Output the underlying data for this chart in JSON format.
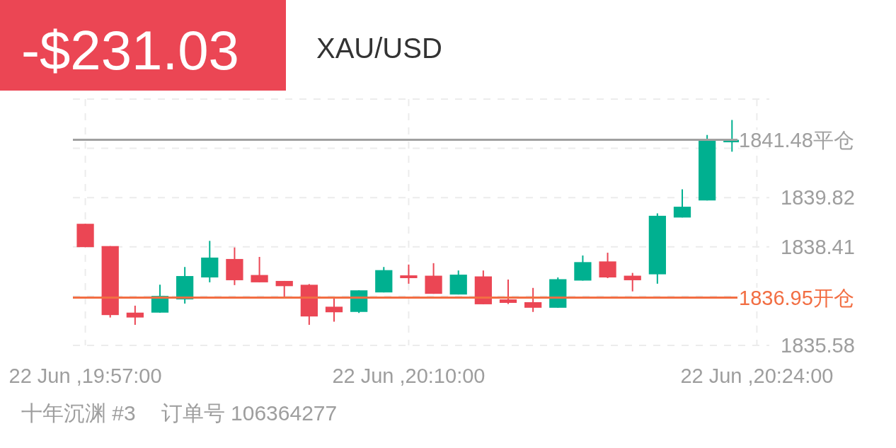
{
  "chart_data": {
    "type": "candlestick",
    "title": "-$231.03",
    "subtitle": "XAU/USD",
    "annotations": [
      "十年沉渊 #3",
      "订单号 106364277"
    ],
    "categories": [
      "22 Jun ,19:57:00",
      null,
      null,
      null,
      null,
      null,
      null,
      null,
      null,
      null,
      null,
      null,
      null,
      "22 Jun ,20:10:00",
      null,
      null,
      null,
      null,
      null,
      null,
      null,
      null,
      null,
      null,
      null,
      null,
      null,
      "22 Jun ,20:24:00"
    ],
    "ohlc": [
      [
        1839.07,
        1839.07,
        1838.4,
        1838.4
      ],
      [
        1838.43,
        1838.43,
        1836.38,
        1836.45
      ],
      [
        1836.52,
        1836.72,
        1836.17,
        1836.38
      ],
      [
        1836.52,
        1837.32,
        1836.52,
        1837.0
      ],
      [
        1836.9,
        1837.83,
        1836.78,
        1837.57
      ],
      [
        1837.53,
        1838.58,
        1837.39,
        1838.1
      ],
      [
        1838.06,
        1838.39,
        1837.31,
        1837.45
      ],
      [
        1837.6,
        1838.12,
        1837.39,
        1837.39
      ],
      [
        1837.43,
        1837.43,
        1836.97,
        1837.28
      ],
      [
        1837.32,
        1837.34,
        1836.17,
        1836.41
      ],
      [
        1836.69,
        1836.94,
        1836.26,
        1836.53
      ],
      [
        1836.54,
        1837.16,
        1836.51,
        1837.16
      ],
      [
        1837.1,
        1837.83,
        1837.1,
        1837.74
      ],
      [
        1837.59,
        1837.9,
        1837.35,
        1837.51
      ],
      [
        1837.58,
        1837.94,
        1837.06,
        1837.06
      ],
      [
        1837.04,
        1837.73,
        1837.04,
        1837.61
      ],
      [
        1837.56,
        1837.73,
        1836.76,
        1836.76
      ],
      [
        1836.9,
        1837.47,
        1836.77,
        1836.8
      ],
      [
        1836.82,
        1837.23,
        1836.54,
        1836.66
      ],
      [
        1836.66,
        1837.53,
        1836.66,
        1837.48
      ],
      [
        1837.44,
        1838.16,
        1837.44,
        1837.97
      ],
      [
        1837.99,
        1838.24,
        1837.51,
        1837.53
      ],
      [
        1837.58,
        1837.66,
        1837.13,
        1837.45
      ],
      [
        1837.62,
        1839.37,
        1837.35,
        1839.3
      ],
      [
        1839.25,
        1840.06,
        1839.25,
        1839.56
      ],
      [
        1839.74,
        1841.62,
        1839.74,
        1841.46
      ],
      [
        1841.41,
        1842.05,
        1841.14,
        1841.48
      ],
      null
    ],
    "colors": [
      "#eb4654",
      "#eb4654",
      "#eb4654",
      "#00b090",
      "#00b090",
      "#00b090",
      "#eb4654",
      "#eb4654",
      "#eb4654",
      "#eb4654",
      "#eb4654",
      "#00b090",
      "#00b090",
      "#eb4654",
      "#eb4654",
      "#00b090",
      "#eb4654",
      "#eb4654",
      "#eb4654",
      "#00b090",
      "#00b090",
      "#eb4654",
      "#eb4654",
      "#00b090",
      "#00b090",
      "#00b090",
      "#00b090",
      null
    ],
    "ylim": [
      1835.58,
      1842.65
    ],
    "yticks": [
      1835.58,
      {
        "value": 1836.99,
        "label": null
      },
      1838.41,
      1839.82,
      {
        "value": 1841.24,
        "label": null
      },
      {
        "value": 1842.65,
        "label": null
      }
    ],
    "ref_lines": [
      {
        "axis": "y",
        "value": 1836.95,
        "label": "1836.95开仓",
        "color": "#f26e43"
      },
      {
        "axis": "y",
        "value": 1841.48,
        "label": "1841.48平仓",
        "color": "#a0a0a0"
      }
    ],
    "grid": true
  }
}
